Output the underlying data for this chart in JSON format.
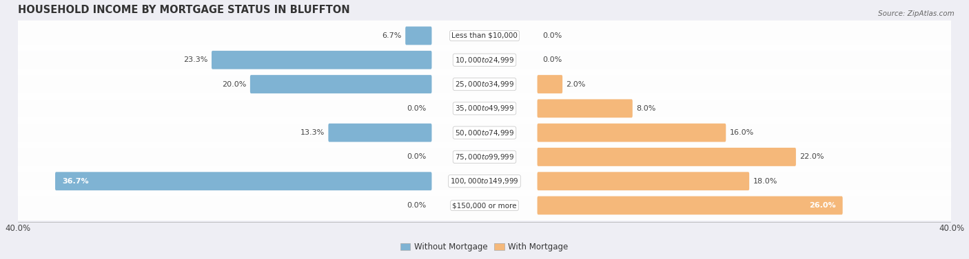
{
  "title": "HOUSEHOLD INCOME BY MORTGAGE STATUS IN BLUFFTON",
  "source": "Source: ZipAtlas.com",
  "categories": [
    "Less than $10,000",
    "$10,000 to $24,999",
    "$25,000 to $34,999",
    "$35,000 to $49,999",
    "$50,000 to $74,999",
    "$75,000 to $99,999",
    "$100,000 to $149,999",
    "$150,000 or more"
  ],
  "without_mortgage": [
    6.7,
    23.3,
    20.0,
    0.0,
    13.3,
    0.0,
    36.7,
    0.0
  ],
  "with_mortgage": [
    0.0,
    0.0,
    2.0,
    8.0,
    16.0,
    22.0,
    18.0,
    26.0
  ],
  "color_without": "#7fb3d3",
  "color_with": "#f5b87a",
  "color_without_pale": "#b8d4e8",
  "xlim": 40.0,
  "bg_color": "#eeeef4",
  "row_bg_color": "#ffffff",
  "title_fontsize": 10.5,
  "label_fontsize": 8.0,
  "cat_fontsize": 7.5,
  "tick_fontsize": 8.5,
  "source_fontsize": 7.5
}
